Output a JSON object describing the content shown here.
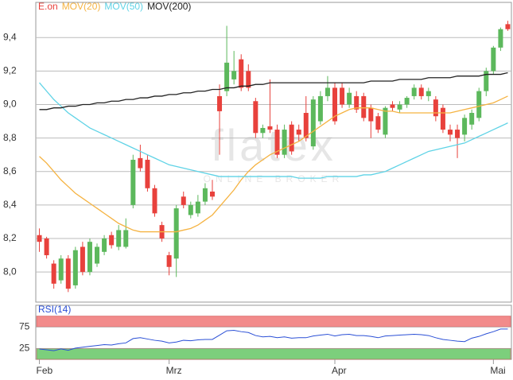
{
  "chart_data": [
    {
      "type": "candlestick",
      "name": "E.on",
      "color_up": "#5cb85c",
      "color_down": "#e8413c",
      "color": "#e8413c",
      "watermark": "flatex",
      "watermark_sub": "ONLINE BROKER",
      "categories": [
        "Feb",
        null,
        null,
        null,
        null,
        null,
        null,
        null,
        null,
        null,
        null,
        null,
        null,
        null,
        null,
        null,
        null,
        null,
        "Mrz",
        null,
        null,
        null,
        null,
        null,
        null,
        null,
        null,
        null,
        null,
        null,
        null,
        null,
        null,
        null,
        null,
        null,
        null,
        null,
        null,
        null,
        null,
        "Apr",
        null,
        null,
        null,
        null,
        null,
        null,
        null,
        null,
        null,
        null,
        null,
        null,
        null,
        null,
        null,
        null,
        null,
        null,
        null,
        null,
        null,
        "Mai",
        null,
        null
      ],
      "open": [
        8.22,
        8.2,
        8.05,
        7.95,
        8.08,
        7.92,
        8.15,
        8.0,
        8.05,
        8.12,
        8.22,
        8.15,
        8.15,
        8.4,
        8.68,
        8.67,
        8.5,
        8.28,
        8.1,
        8.08,
        8.45,
        8.34,
        8.35,
        8.42,
        8.48,
        9.05,
        9.08,
        9.15,
        9.27,
        9.2,
        9.02,
        8.83,
        8.87,
        8.85,
        8.7,
        8.88,
        8.85,
        8.95,
        8.75,
        8.9,
        9.05,
        9.1,
        9.1,
        9.0,
        9.05,
        9.05,
        8.98,
        8.93,
        8.82,
        9.0,
        8.97,
        9.0,
        9.05,
        9.1,
        9.05,
        9.03,
        8.98,
        8.85,
        8.85,
        8.82,
        8.88,
        8.92,
        9.08,
        9.2,
        9.34,
        9.48
      ],
      "high": [
        8.26,
        8.21,
        8.07,
        8.1,
        8.1,
        8.15,
        8.18,
        8.2,
        8.17,
        8.22,
        8.24,
        8.28,
        8.32,
        8.7,
        8.76,
        8.7,
        8.52,
        8.3,
        8.12,
        8.4,
        8.48,
        8.42,
        8.46,
        8.53,
        8.55,
        9.12,
        9.47,
        9.32,
        9.3,
        9.24,
        9.04,
        8.88,
        9.15,
        8.88,
        8.88,
        8.9,
        8.88,
        9.05,
        9.05,
        9.08,
        9.17,
        9.13,
        9.13,
        9.1,
        9.08,
        9.07,
        9.0,
        8.95,
        8.99,
        9.02,
        9.02,
        9.05,
        9.12,
        9.12,
        9.1,
        9.05,
        9.0,
        8.88,
        8.88,
        8.94,
        8.97,
        9.1,
        9.22,
        9.35,
        9.46,
        9.5
      ],
      "low": [
        8.12,
        8.08,
        7.9,
        7.93,
        7.88,
        7.9,
        7.98,
        7.98,
        8.03,
        8.1,
        8.14,
        8.13,
        8.14,
        8.38,
        8.6,
        8.48,
        8.33,
        8.18,
        7.98,
        7.97,
        8.38,
        8.32,
        8.33,
        8.4,
        8.43,
        8.7,
        9.05,
        9.12,
        9.08,
        9.08,
        8.8,
        8.8,
        8.83,
        8.68,
        8.68,
        8.7,
        8.78,
        8.78,
        8.73,
        8.88,
        9.02,
        8.88,
        8.98,
        8.98,
        8.95,
        8.9,
        8.8,
        8.83,
        8.8,
        8.96,
        8.95,
        8.98,
        9.03,
        9.03,
        9.02,
        8.9,
        8.83,
        8.78,
        8.68,
        8.78,
        8.85,
        8.9,
        9.05,
        9.18,
        9.32,
        9.44
      ],
      "close": [
        8.18,
        8.1,
        7.93,
        8.08,
        7.9,
        8.13,
        8.0,
        8.18,
        8.15,
        8.2,
        8.16,
        8.25,
        8.25,
        8.67,
        8.62,
        8.5,
        8.35,
        8.2,
        8.03,
        8.38,
        8.4,
        8.4,
        8.42,
        8.5,
        8.45,
        8.96,
        9.25,
        9.2,
        9.1,
        9.1,
        8.83,
        8.86,
        8.85,
        8.7,
        8.85,
        8.72,
        8.82,
        8.8,
        9.03,
        9.05,
        9.1,
        8.9,
        9.0,
        9.07,
        8.97,
        8.92,
        8.9,
        8.85,
        8.98,
        8.98,
        9.0,
        9.04,
        9.1,
        9.05,
        9.08,
        8.93,
        8.85,
        8.82,
        8.8,
        8.92,
        8.95,
        9.08,
        9.2,
        9.34,
        9.45,
        9.45
      ],
      "series": [
        {
          "name": "MOV(20)",
          "color": "#f5b342",
          "values": [
            8.69,
            8.65,
            8.6,
            8.55,
            8.51,
            8.47,
            8.44,
            8.41,
            8.38,
            8.35,
            8.32,
            8.29,
            8.27,
            8.25,
            8.24,
            8.24,
            8.24,
            8.24,
            8.24,
            8.24,
            8.25,
            8.26,
            8.28,
            8.31,
            8.34,
            8.39,
            8.44,
            8.49,
            8.55,
            8.6,
            8.64,
            8.67,
            8.7,
            8.72,
            8.74,
            8.76,
            8.78,
            8.81,
            8.84,
            8.87,
            8.9,
            8.93,
            8.95,
            8.97,
            8.98,
            8.98,
            8.98,
            8.97,
            8.96,
            8.96,
            8.95,
            8.95,
            8.95,
            8.95,
            8.95,
            8.95,
            8.95,
            8.95,
            8.96,
            8.97,
            8.98,
            8.99,
            9.0,
            9.01,
            9.03,
            9.05
          ]
        },
        {
          "name": "MOV(50)",
          "color": "#5fd3e6",
          "values": [
            9.13,
            9.08,
            9.03,
            8.99,
            8.95,
            8.92,
            8.89,
            8.86,
            8.84,
            8.82,
            8.8,
            8.78,
            8.76,
            8.74,
            8.72,
            8.7,
            8.68,
            8.66,
            8.64,
            8.63,
            8.62,
            8.61,
            8.6,
            8.59,
            8.58,
            8.57,
            8.57,
            8.57,
            8.57,
            8.57,
            8.57,
            8.57,
            8.57,
            8.57,
            8.57,
            8.57,
            8.56,
            8.56,
            8.56,
            8.56,
            8.57,
            8.57,
            8.57,
            8.57,
            8.57,
            8.58,
            8.58,
            8.59,
            8.6,
            8.62,
            8.64,
            8.66,
            8.68,
            8.7,
            8.72,
            8.73,
            8.74,
            8.75,
            8.76,
            8.77,
            8.79,
            8.81,
            8.83,
            8.85,
            8.87,
            8.89
          ]
        },
        {
          "name": "MOV(200)",
          "color": "#222222",
          "values": [
            8.97,
            8.97,
            8.98,
            8.98,
            8.99,
            8.99,
            9.0,
            9.0,
            9.01,
            9.01,
            9.02,
            9.02,
            9.03,
            9.03,
            9.04,
            9.04,
            9.05,
            9.05,
            9.06,
            9.06,
            9.07,
            9.07,
            9.08,
            9.08,
            9.09,
            9.09,
            9.1,
            9.1,
            9.11,
            9.11,
            9.12,
            9.12,
            9.13,
            9.13,
            9.13,
            9.13,
            9.13,
            9.13,
            9.13,
            9.13,
            9.13,
            9.13,
            9.13,
            9.13,
            9.13,
            9.13,
            9.14,
            9.14,
            9.14,
            9.14,
            9.15,
            9.15,
            9.15,
            9.15,
            9.16,
            9.16,
            9.16,
            9.16,
            9.17,
            9.17,
            9.17,
            9.17,
            9.18,
            9.18,
            9.18,
            9.19
          ]
        }
      ],
      "ylim": [
        7.82,
        9.61
      ],
      "yticks": [
        {
          "value": 8.0,
          "label": "8,0"
        },
        {
          "value": 8.2,
          "label": "8,2"
        },
        {
          "value": 8.4,
          "label": "8,4"
        },
        {
          "value": 8.6,
          "label": "8,6"
        },
        {
          "value": 8.8,
          "label": "8,8"
        },
        {
          "value": 9.0,
          "label": "9,0"
        },
        {
          "value": 9.2,
          "label": "9,2"
        },
        {
          "value": 9.4,
          "label": "9,4"
        }
      ],
      "grid": true
    },
    {
      "type": "line",
      "series": [
        {
          "name": "RSI(14)",
          "color": "#2a4fd6",
          "values": [
            24,
            22,
            20,
            24,
            21,
            26,
            28,
            30,
            32,
            34,
            33,
            36,
            38,
            48,
            50,
            47,
            44,
            42,
            38,
            40,
            44,
            43,
            45,
            46,
            46,
            56,
            66,
            67,
            64,
            62,
            55,
            52,
            53,
            50,
            52,
            49,
            50,
            50,
            54,
            56,
            58,
            54,
            57,
            58,
            55,
            55,
            53,
            50,
            54,
            55,
            56,
            57,
            58,
            57,
            55,
            50,
            46,
            44,
            42,
            41,
            49,
            53,
            59,
            64,
            70,
            70
          ]
        }
      ],
      "bands": [
        {
          "from": 75,
          "to": 100,
          "color": "#f28b8b"
        },
        {
          "from": 0,
          "to": 25,
          "color": "#7ccf7c"
        }
      ],
      "ylim": [
        0,
        125
      ],
      "yticks": [
        25,
        75
      ],
      "grid": true
    }
  ]
}
